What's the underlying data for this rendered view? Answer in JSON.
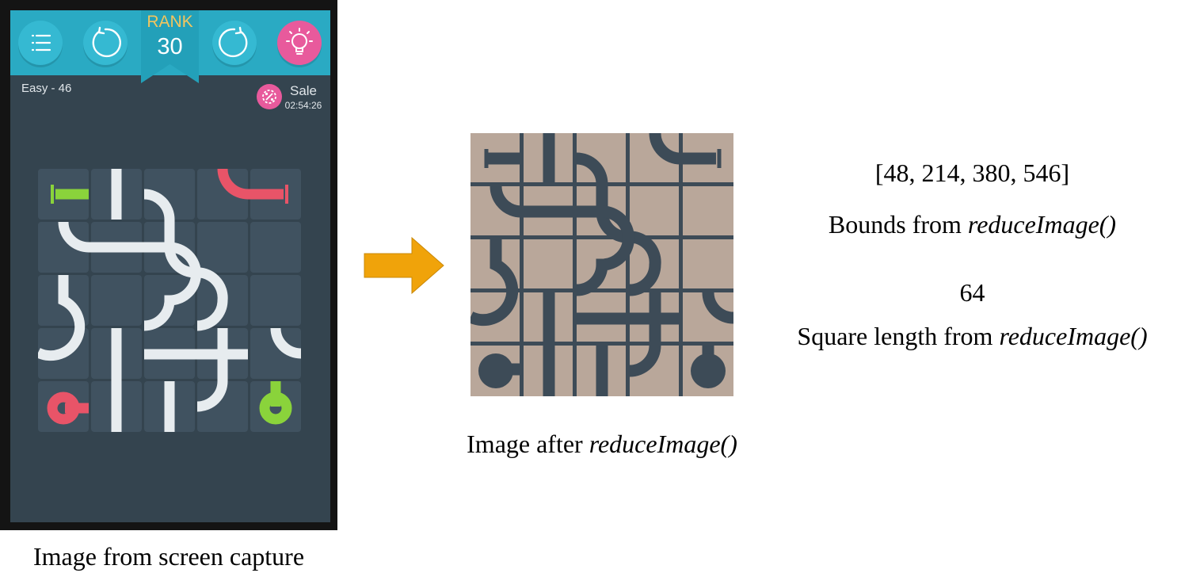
{
  "game": {
    "rank_label": "RANK",
    "rank_value": "30",
    "level_text": "Easy - 46",
    "sale_label": "Sale",
    "sale_timer": "02:54:26",
    "buttons": [
      "menu-icon",
      "undo-icon",
      "restart-icon",
      "lightbulb-icon"
    ],
    "colors": {
      "background": "#34444f",
      "topbar": "#2aaac3",
      "tile": "#405260",
      "pipe": "#e7ecef",
      "start_pipe": "#8ad33b",
      "end_pipe": "#e85468",
      "hint": "#e85a9c",
      "rank_text": "#f2c55e"
    }
  },
  "captions": {
    "screen_prefix": "Image from screen capture",
    "reduced_prefix": "Image after ",
    "func_name": "reduceImage()"
  },
  "results": {
    "bounds_value": "[48, 214, 380, 546]",
    "bounds_prefix": "Bounds from ",
    "square_value": "64",
    "square_prefix": "Square length from "
  },
  "reduced_colors": {
    "tile": "#b9a79a",
    "pipe": "#3d4b57"
  }
}
